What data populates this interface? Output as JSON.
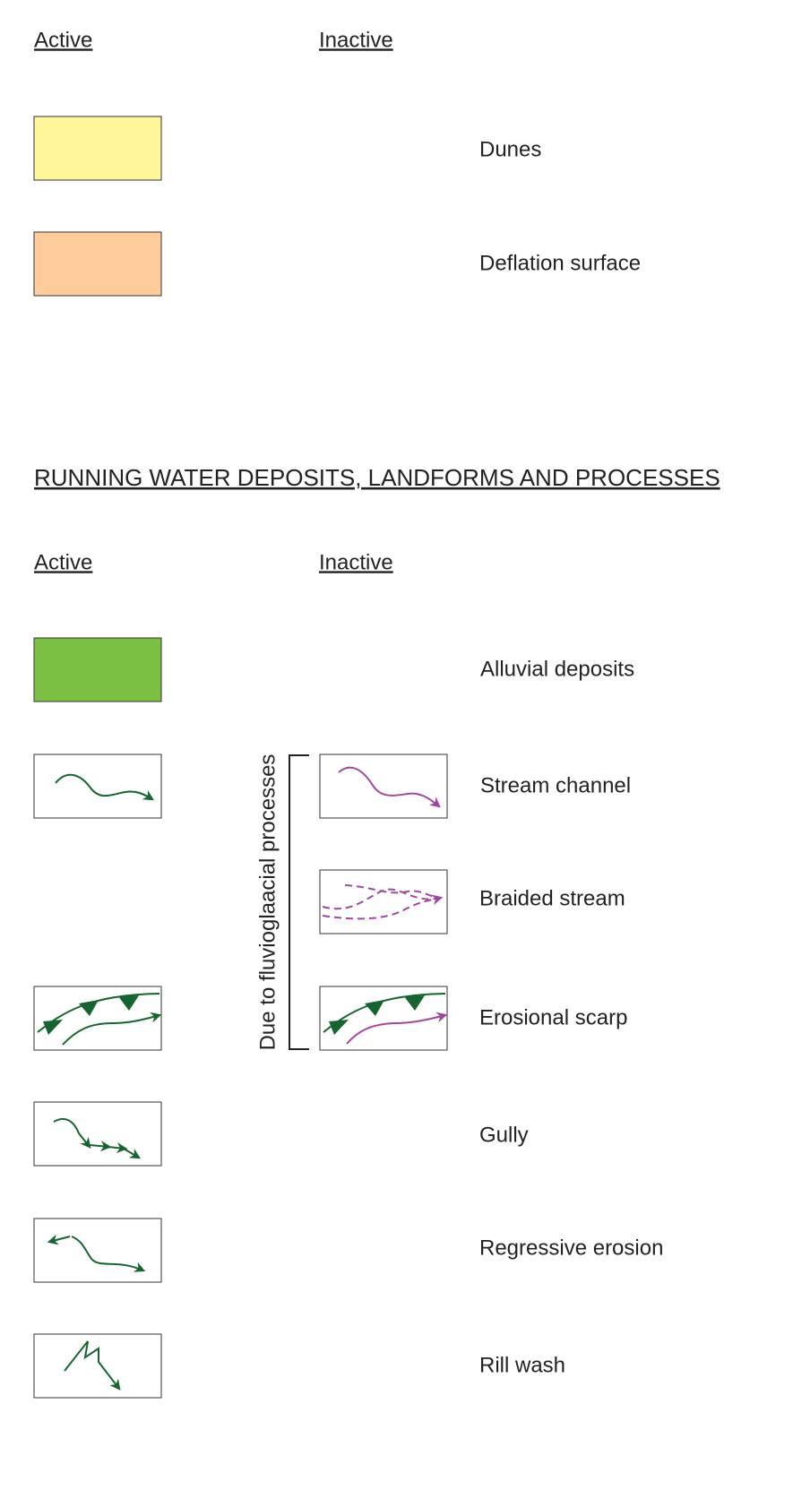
{
  "sections": [
    {
      "columns": [
        "Active",
        "Inactive"
      ],
      "items": [
        {
          "label": "Dunes"
        },
        {
          "label": "Deflation surface"
        }
      ]
    },
    {
      "title": "RUNNING WATER DEPOSITS, LANDFORMS AND PROCESSES",
      "columns": [
        "Active",
        "Inactive"
      ],
      "items": [
        {
          "label": "Alluvial deposits"
        },
        {
          "label": "Stream channel"
        },
        {
          "label": "Braided stream"
        },
        {
          "label": "Erosional scarp"
        },
        {
          "label": "Gully"
        },
        {
          "label": "Regressive erosion"
        },
        {
          "label": "Rill wash"
        }
      ]
    }
  ],
  "bracket_label": "Due to fluvioglaacial processes"
}
